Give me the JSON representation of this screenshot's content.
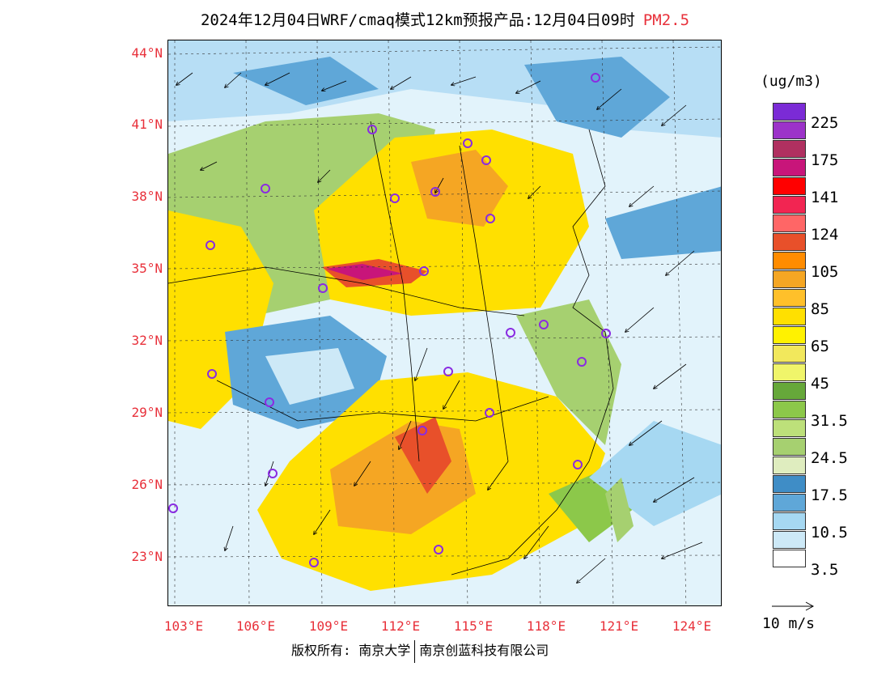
{
  "header": {
    "title": "2024年12月04日WRF/cmaq模式12km预报产品:12月04日09时",
    "pollutant": "PM2.5"
  },
  "map": {
    "lat_labels": [
      "44°N",
      "41°N",
      "38°N",
      "35°N",
      "32°N",
      "29°N",
      "26°N",
      "23°N"
    ],
    "lon_labels": [
      "103°E",
      "106°E",
      "109°E",
      "112°E",
      "115°E",
      "118°E",
      "121°E",
      "124°E"
    ],
    "features": [
      "pm25-concentration-field",
      "wind-vector-arrows",
      "province-borders",
      "city-markers"
    ],
    "city_marker_color": "#8a2be2"
  },
  "legend": {
    "unit": "(ug/m3)",
    "labels": [
      "225",
      "175",
      "141",
      "124",
      "105",
      "85",
      "65",
      "45",
      "31.5",
      "24.5",
      "17.5",
      "10.5",
      "3.5"
    ],
    "colors": [
      "#7b2bd6",
      "#9c33c9",
      "#b03060",
      "#c8157a",
      "#ff0000",
      "#f22552",
      "#ff6666",
      "#e8502a",
      "#ff8c00",
      "#f5a623",
      "#ffc02a",
      "#ffe000",
      "#fff200",
      "#f2e85c",
      "#f0f56a",
      "#66a83a",
      "#8cc84a",
      "#bde07a",
      "#a6d070",
      "#dfedbf",
      "#3f8dc6",
      "#5fa7d8",
      "#a6d8f2",
      "#cde9f7",
      "#ffffff"
    ]
  },
  "wind_reference": {
    "label": "10 m/s"
  },
  "footer": {
    "copyright_left": "版权所有: 南京大学",
    "copyright_right": "南京创蓝科技有限公司"
  }
}
